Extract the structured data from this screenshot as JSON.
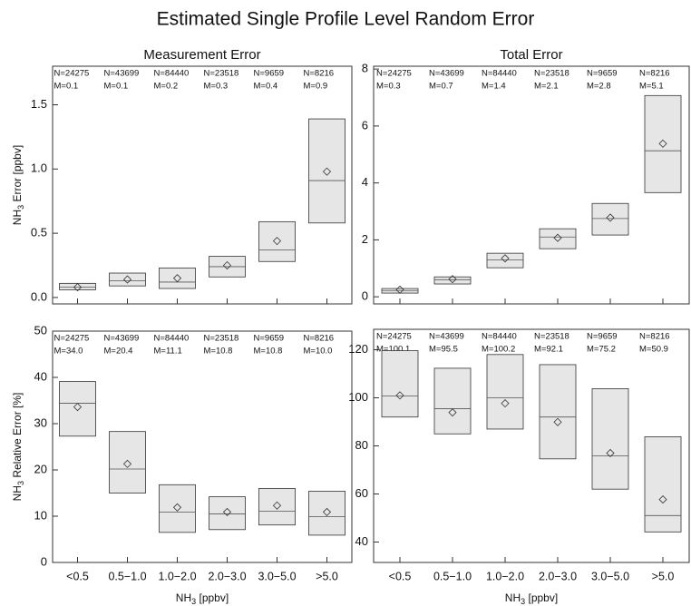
{
  "title": "Estimated Single Profile Level Random Error",
  "chart_data": [
    {
      "type": "box",
      "title": "Measurement Error",
      "ylabel": {
        "text": "NH",
        "sub": "3",
        "after": " Error [ppbv]"
      },
      "ylim": [
        -0.05,
        1.8
      ],
      "yticks": [
        {
          "value": 0,
          "label": "0.0"
        },
        0.5,
        {
          "value": 1,
          "label": "1.0"
        },
        1.5
      ],
      "n_labels": [
        "N=24275",
        "N=43699",
        "N=84440",
        "N=23518",
        "N=9659",
        "N=8216"
      ],
      "m_labels": [
        "M=0.1",
        "M=0.1",
        "M=0.2",
        "M=0.3",
        "M=0.4",
        "M=0.9"
      ],
      "q1": [
        0.06,
        0.09,
        0.07,
        0.16,
        0.28,
        0.58
      ],
      "median": [
        0.08,
        0.13,
        0.12,
        0.24,
        0.37,
        0.91
      ],
      "q3": [
        0.11,
        0.19,
        0.23,
        0.32,
        0.59,
        1.39
      ],
      "mean": [
        0.08,
        0.14,
        0.15,
        0.25,
        0.44,
        0.98
      ]
    },
    {
      "type": "box",
      "title": "Total Error",
      "ylim": [
        -0.25,
        8.1
      ],
      "yticks": [
        0,
        2,
        4,
        6,
        8
      ],
      "n_labels": [
        "N=24275",
        "N=43699",
        "N=84440",
        "N=23518",
        "N=9659",
        "N=8216"
      ],
      "m_labels": [
        "M=0.3",
        "M=0.7",
        "M=1.4",
        "M=2.1",
        "M=2.8",
        "M=5.1"
      ],
      "q1": [
        0.13,
        0.45,
        1.02,
        1.69,
        2.17,
        3.66
      ],
      "median": [
        0.22,
        0.6,
        1.3,
        2.1,
        2.75,
        5.13
      ],
      "q3": [
        0.29,
        0.7,
        1.53,
        2.39,
        3.28,
        7.07
      ],
      "mean": [
        0.25,
        0.62,
        1.35,
        2.07,
        2.78,
        5.38
      ]
    },
    {
      "type": "box",
      "ylabel": {
        "text": "NH",
        "sub": "3",
        "after": " Relative Error [%]"
      },
      "xlabel": {
        "text": "NH",
        "sub": "3",
        "after": " [ppbv]"
      },
      "categories": [
        "<0.5",
        "0.5−1.0",
        "1.0−2.0",
        "2.0−3.0",
        "3.0−5.0",
        ">5.0"
      ],
      "ylim": [
        0,
        50
      ],
      "yticks": [
        0,
        10,
        20,
        30,
        40,
        50
      ],
      "n_labels": [
        "N=24275",
        "N=43699",
        "N=84440",
        "N=23518",
        "N=9659",
        "N=8216"
      ],
      "m_labels": [
        "M=34.0",
        "M=20.4",
        "M=11.1",
        "M=10.8",
        "M=10.8",
        "M=10.0"
      ],
      "q1": [
        27.3,
        15.0,
        6.5,
        7.1,
        8.1,
        5.9
      ],
      "median": [
        34.4,
        20.2,
        10.9,
        10.5,
        11.1,
        9.9
      ],
      "q3": [
        39.1,
        28.3,
        16.8,
        14.2,
        16.0,
        15.4
      ],
      "mean": [
        33.6,
        21.3,
        11.9,
        10.9,
        12.3,
        10.9
      ]
    },
    {
      "type": "box",
      "xlabel": {
        "text": "NH",
        "sub": "3",
        "after": " [ppbv]"
      },
      "categories": [
        "<0.5",
        "0.5−1.0",
        "1.0−2.0",
        "2.0−3.0",
        "3.0−5.0",
        ">5.0"
      ],
      "ylim": [
        31.5,
        128.5
      ],
      "yticks": [
        40,
        60,
        80,
        100,
        120
      ],
      "n_labels": [
        "N=24275",
        "N=43699",
        "N=84440",
        "N=23518",
        "N=9659",
        "N=8216"
      ],
      "m_labels": [
        "M=100.1",
        "M=95.5",
        "M=100.2",
        "M=92.1",
        "M=75.2",
        "M=50.9"
      ],
      "q1": [
        92.0,
        85.0,
        87.0,
        74.6,
        62.0,
        44.2
      ],
      "median": [
        100.8,
        95.5,
        100.0,
        92.0,
        75.8,
        51.0
      ],
      "q3": [
        119.6,
        112.3,
        118.0,
        113.8,
        103.8,
        83.8
      ],
      "mean": [
        101.0,
        93.9,
        97.7,
        89.9,
        77.0,
        57.7
      ]
    }
  ]
}
